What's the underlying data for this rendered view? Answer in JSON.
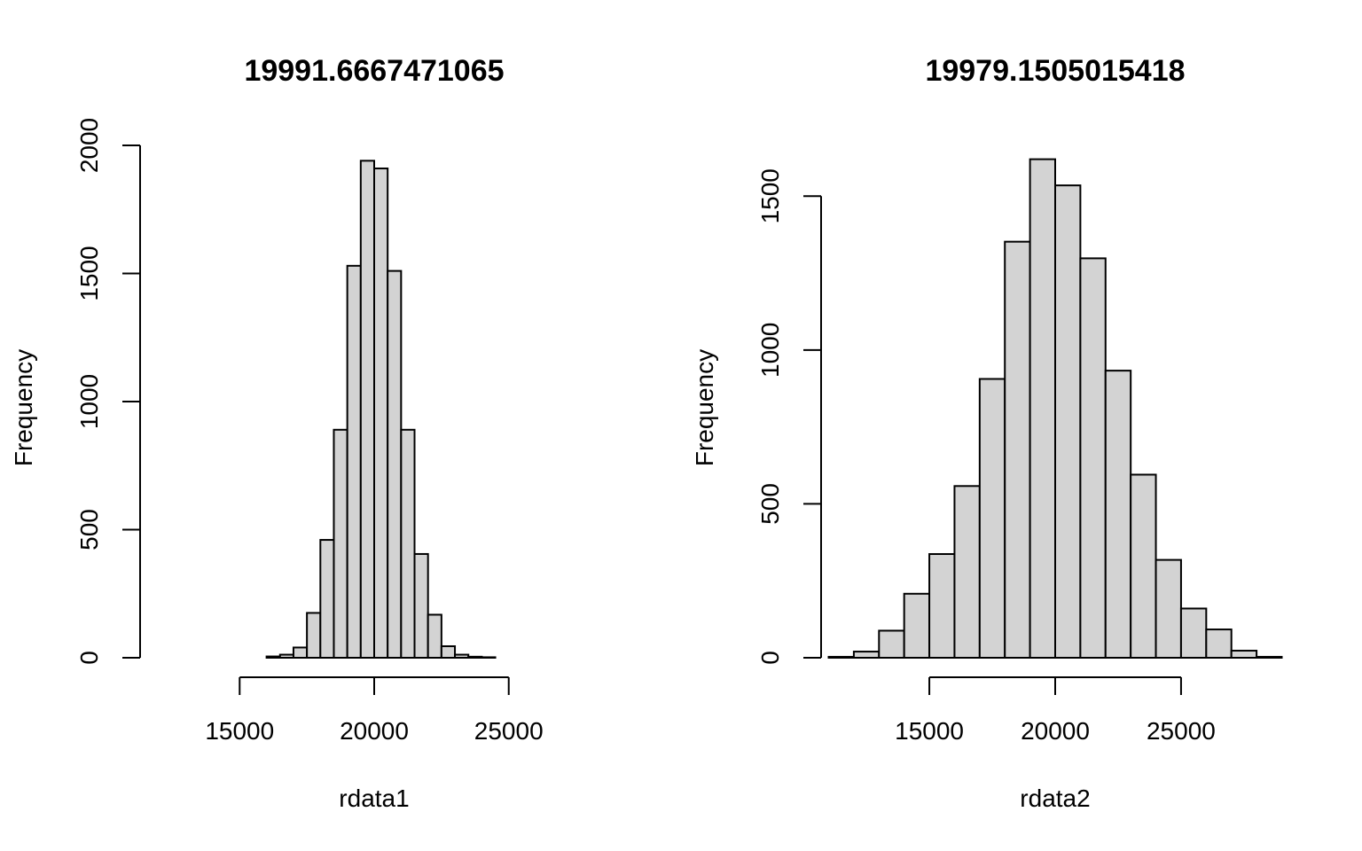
{
  "chart_data": [
    {
      "type": "bar",
      "title": "19991.6667471065",
      "xlabel": "rdata1",
      "ylabel": "Frequency",
      "bar_color": "#d3d3d3",
      "bins": [
        {
          "x0": 16000,
          "x1": 16500,
          "count": 5
        },
        {
          "x0": 16500,
          "x1": 17000,
          "count": 12
        },
        {
          "x0": 17000,
          "x1": 17500,
          "count": 40
        },
        {
          "x0": 17500,
          "x1": 18000,
          "count": 175
        },
        {
          "x0": 18000,
          "x1": 18500,
          "count": 460
        },
        {
          "x0": 18500,
          "x1": 19000,
          "count": 890
        },
        {
          "x0": 19000,
          "x1": 19500,
          "count": 1530
        },
        {
          "x0": 19500,
          "x1": 20000,
          "count": 1940
        },
        {
          "x0": 20000,
          "x1": 20500,
          "count": 1910
        },
        {
          "x0": 20500,
          "x1": 21000,
          "count": 1510
        },
        {
          "x0": 21000,
          "x1": 21500,
          "count": 890
        },
        {
          "x0": 21500,
          "x1": 22000,
          "count": 405
        },
        {
          "x0": 22000,
          "x1": 22500,
          "count": 168
        },
        {
          "x0": 22500,
          "x1": 23000,
          "count": 45
        },
        {
          "x0": 23000,
          "x1": 23500,
          "count": 12
        },
        {
          "x0": 23500,
          "x1": 24000,
          "count": 4
        },
        {
          "x0": 24000,
          "x1": 24500,
          "count": 2
        }
      ],
      "xlim": [
        11300,
        28700
      ],
      "ylim": [
        0,
        2000
      ],
      "x_ticks": [
        "15000",
        "20000",
        "25000"
      ],
      "y_ticks": [
        "0",
        "500",
        "1000",
        "1500",
        "2000"
      ]
    },
    {
      "type": "bar",
      "title": "19979.1505015418",
      "xlabel": "rdata2",
      "ylabel": "Frequency",
      "bar_color": "#d3d3d3",
      "bins": [
        {
          "x0": 11000,
          "x1": 12000,
          "count": 3
        },
        {
          "x0": 12000,
          "x1": 13000,
          "count": 20
        },
        {
          "x0": 13000,
          "x1": 14000,
          "count": 88
        },
        {
          "x0": 14000,
          "x1": 15000,
          "count": 208
        },
        {
          "x0": 15000,
          "x1": 16000,
          "count": 337
        },
        {
          "x0": 16000,
          "x1": 17000,
          "count": 558
        },
        {
          "x0": 17000,
          "x1": 18000,
          "count": 906
        },
        {
          "x0": 18000,
          "x1": 19000,
          "count": 1352
        },
        {
          "x0": 19000,
          "x1": 20000,
          "count": 1620
        },
        {
          "x0": 20000,
          "x1": 21000,
          "count": 1535
        },
        {
          "x0": 21000,
          "x1": 22000,
          "count": 1298
        },
        {
          "x0": 22000,
          "x1": 23000,
          "count": 933
        },
        {
          "x0": 23000,
          "x1": 24000,
          "count": 595
        },
        {
          "x0": 24000,
          "x1": 25000,
          "count": 318
        },
        {
          "x0": 25000,
          "x1": 26000,
          "count": 160
        },
        {
          "x0": 26000,
          "x1": 27000,
          "count": 92
        },
        {
          "x0": 27000,
          "x1": 28000,
          "count": 23
        },
        {
          "x0": 28000,
          "x1": 29000,
          "count": 3
        }
      ],
      "xlim": [
        10700,
        29300
      ],
      "ylim": [
        0,
        1665
      ],
      "x_ticks": [
        "15000",
        "20000",
        "25000"
      ],
      "y_ticks": [
        "0",
        "500",
        "1000",
        "1500"
      ]
    }
  ]
}
